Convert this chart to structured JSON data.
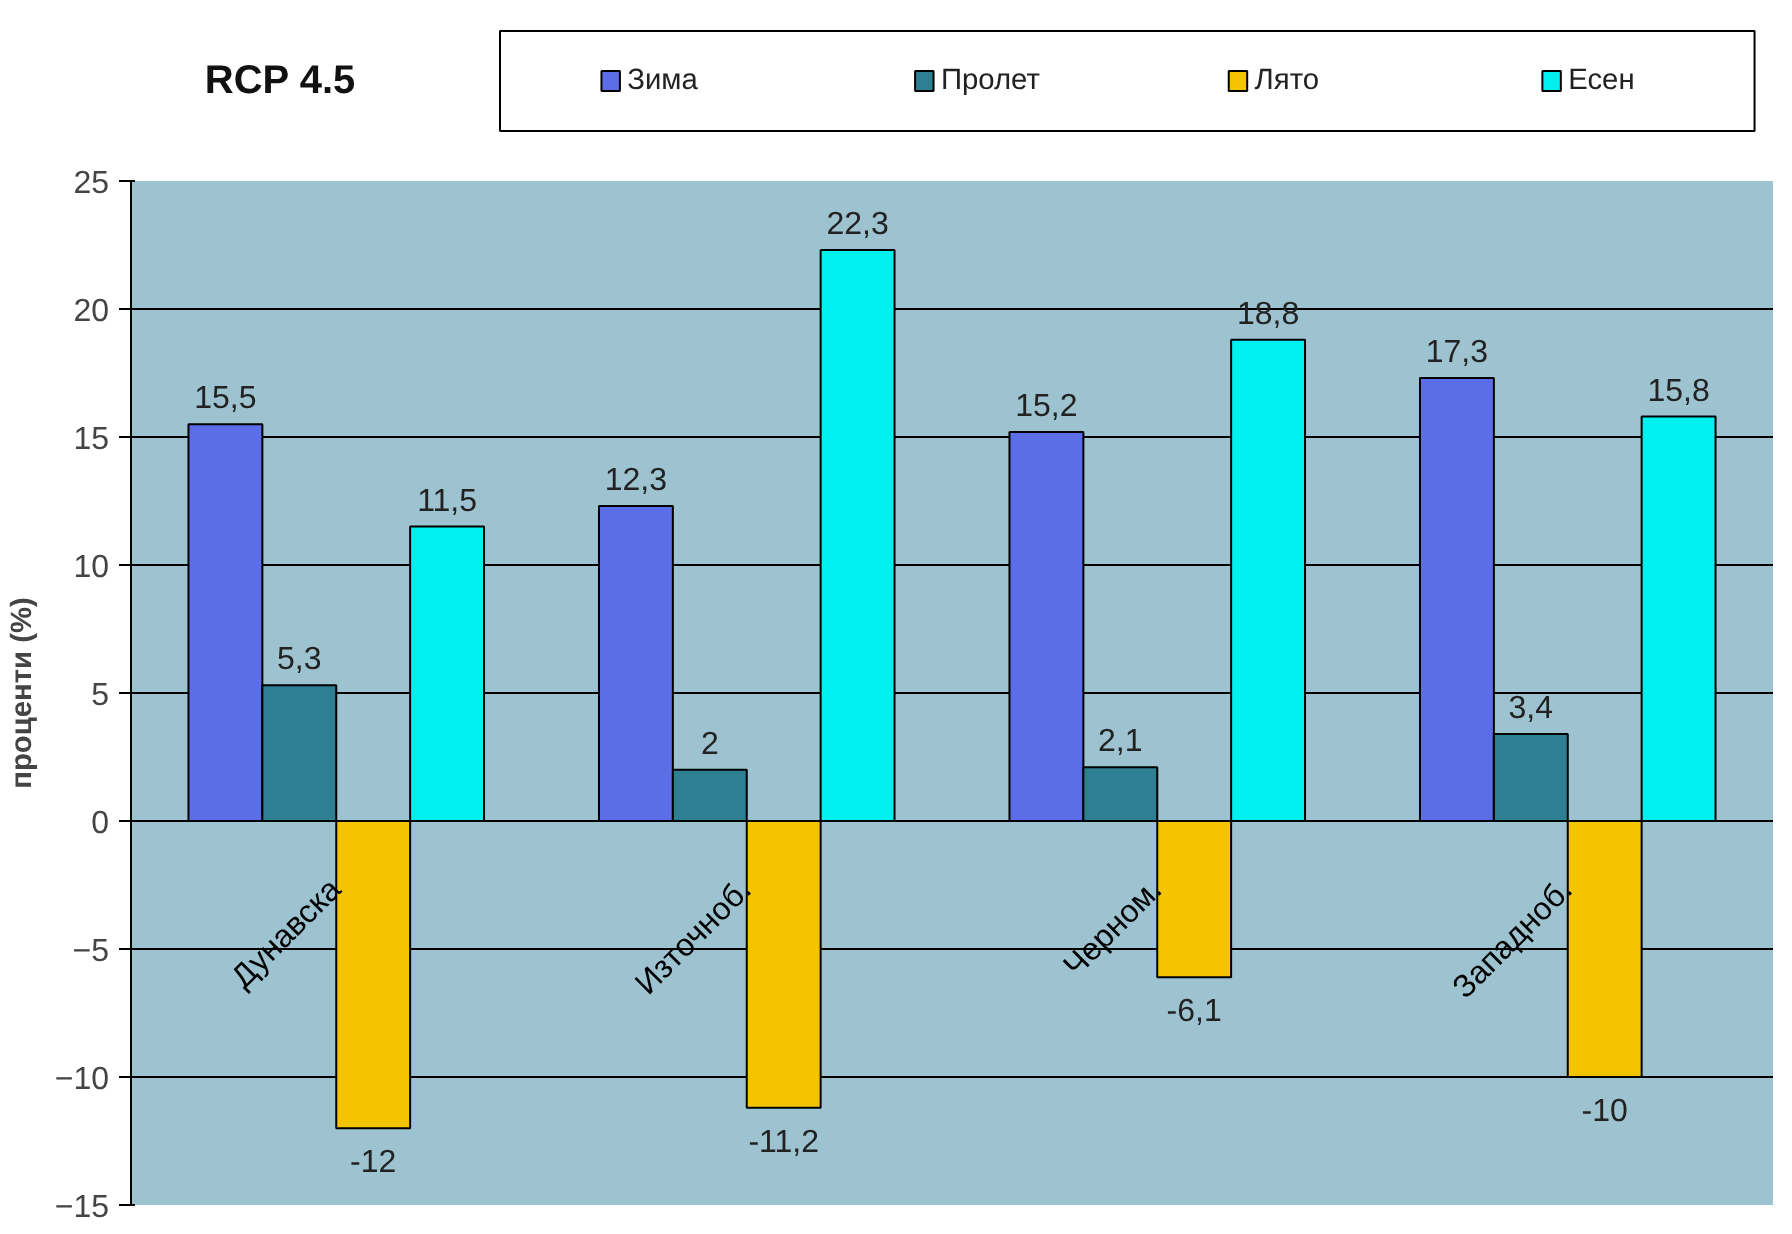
{
  "chart_data": {
    "type": "bar",
    "title": "RCP 4.5",
    "ylabel": "проценти (%)",
    "categories": [
      "Дунавска",
      "Източноб.",
      "Черном.",
      "Западноб."
    ],
    "series": [
      {
        "name": "Зима",
        "color": "#5b6ee8",
        "values": [
          15.5,
          12.3,
          15.2,
          17.3
        ],
        "value_labels": [
          "15,5",
          "12,3",
          "15,2",
          "17,3"
        ]
      },
      {
        "name": "Пролет",
        "color": "#2e7f94",
        "values": [
          5.3,
          2,
          2.1,
          3.4
        ],
        "value_labels": [
          "5,3",
          "2",
          "2,1",
          "3,4"
        ]
      },
      {
        "name": "Лято",
        "color": "#f5c400",
        "values": [
          -12,
          -11.2,
          -6.1,
          -10
        ],
        "value_labels": [
          "-12",
          "-11,2",
          "-6,1",
          "-10"
        ]
      },
      {
        "name": "Есен",
        "color": "#00f0f0",
        "values": [
          11.5,
          22.3,
          18.8,
          15.8
        ],
        "value_labels": [
          "11,5",
          "22,3",
          "18,8",
          "15,8"
        ]
      }
    ],
    "ylim": [
      -15,
      25
    ],
    "yticks": [
      -15,
      -10,
      -5,
      0,
      5,
      10,
      15,
      20,
      25
    ],
    "grid": "y",
    "legend": "top"
  }
}
